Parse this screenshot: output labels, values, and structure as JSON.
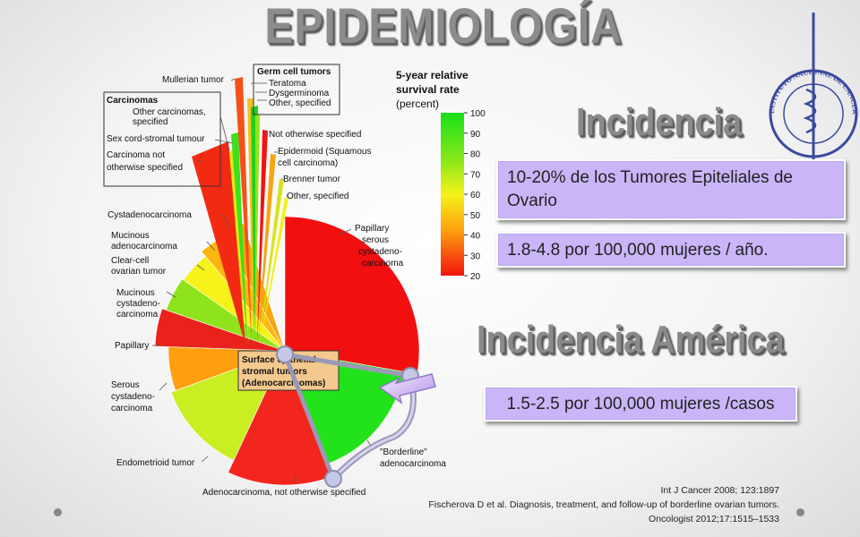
{
  "slide": {
    "title": "EPIDEMIOLOGÍA",
    "incidencia_heading": "Incidencia",
    "incidencia_text1": "10-20% de los Tumores Epiteliales de Ovario",
    "incidencia_text2": "1.8-4.8 por 100,000 mujeres / año.",
    "america_heading": "Incidencia América",
    "america_text": "1.5-2.5 por 100,000 mujeres /casos",
    "references": [
      "Int J Cancer 2008; 123:1897",
      "Fischerova D et al. Diagnosis, treatment, and follow-up of borderline ovarian tumors.",
      "Oncologist 2012;17:1515–1533"
    ],
    "logo": {
      "ring_text": "INSTITUTO NACIONAL DE CANCEROLOGÍA México",
      "color": "#3b4a9e"
    }
  },
  "chart_data": {
    "type": "pie",
    "legend": {
      "title_line1": "5-year relative",
      "title_line2": "survival rate",
      "title_line3": "(percent)",
      "ticks": [
        100,
        90,
        80,
        70,
        60,
        50,
        40,
        30,
        20
      ]
    },
    "center_label_line1": "Surface epithelial-",
    "center_label_line2": "stromal tumors",
    "center_label_line3": "(Adenocarcinomas)",
    "slices": [
      {
        "label": "Papillary serous cystadeno-carcinoma",
        "color": "#f20f0f"
      },
      {
        "label": "\"Borderline\" adenocarcinoma",
        "color": "#22e31a"
      },
      {
        "label": "Adenocarcinoma, not otherwise specified",
        "color": "#f2261c"
      },
      {
        "label": "Endometrioid tumor",
        "color": "#c9ee22"
      },
      {
        "label": "Serous cystadeno-carcinoma",
        "color": "#ff9f0f"
      },
      {
        "label": "Papillary",
        "color": "#e9231b"
      },
      {
        "label": "Mucinous cystadeno-carcinoma",
        "color": "#8ee31a"
      },
      {
        "label": "Clear-cell ovarian tumor",
        "color": "#f6f21a"
      },
      {
        "label": "Mucinous adenocarcinoma",
        "color": "#ffb60f"
      },
      {
        "label": "Cystadenocarcinoma",
        "color": "#f7a40f"
      }
    ],
    "exploded_labels": {
      "mullerian": "Mullerian tumor",
      "germ_title": "Germ cell tumors",
      "teratoma": "Teratoma",
      "dysgerminoma": "Dysgerminoma",
      "germ_other": "Other, specified",
      "carcinomas_title": "Carcinomas",
      "other_carcinomas_1": "Other carcinomas,",
      "other_carcinomas_2": "specified",
      "sex_cord": "Sex cord-stromal tumour",
      "carcinoma_nos_1": "Carcinoma not",
      "carcinoma_nos_2": "otherwise specified",
      "not_otherwise": "Not otherwise specified",
      "epidermoid_1": "Epidermoid (Squamous",
      "epidermoid_2": "cell carcinoma)",
      "brenner": "Brenner tumor",
      "other_specified": "Other, specified"
    }
  }
}
